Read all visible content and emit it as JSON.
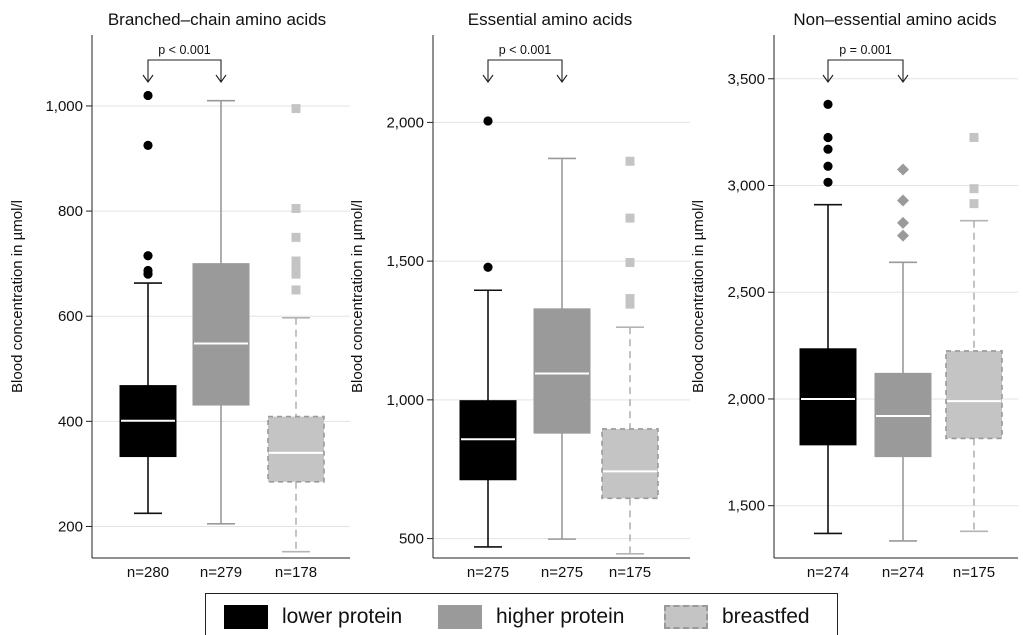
{
  "chart_data": [
    {
      "type": "box",
      "title": "Branched–chain amino acids",
      "ylabel": "Blood concentration in µmol/l",
      "ylim": [
        140,
        1135
      ],
      "yticks": [
        200,
        400,
        600,
        800,
        1000
      ],
      "ytick_labels": [
        "200",
        "400",
        "600",
        "800",
        "1,000"
      ],
      "annotation": "p < 0.001",
      "groups": [
        {
          "series": "lower protein",
          "n_label": "n=280",
          "whisker_low": 225,
          "q1": 333,
          "median": 401,
          "q3": 468,
          "whisker_high": 663,
          "outliers": [
            680,
            687,
            715,
            925,
            1020
          ]
        },
        {
          "series": "higher protein",
          "n_label": "n=279",
          "whisker_low": 205,
          "q1": 431,
          "median": 548,
          "q3": 700,
          "whisker_high": 1010,
          "outliers": []
        },
        {
          "series": "breastfed",
          "n_label": "n=178",
          "whisker_low": 152,
          "q1": 285,
          "median": 340,
          "q3": 409,
          "whisker_high": 597,
          "outliers": [
            650,
            680,
            695,
            705,
            750,
            805,
            995
          ]
        }
      ]
    },
    {
      "type": "box",
      "title": "Essential amino acids",
      "ylabel": "Blood concentration in µmol/l",
      "ylim": [
        430,
        2315
      ],
      "yticks": [
        500,
        1000,
        1500,
        2000
      ],
      "ytick_labels": [
        "500",
        "1,000",
        "1,500",
        "2,000"
      ],
      "annotation": "p < 0.001",
      "groups": [
        {
          "series": "lower protein",
          "n_label": "n=275",
          "whisker_low": 470,
          "q1": 712,
          "median": 858,
          "q3": 997,
          "whisker_high": 1395,
          "outliers": [
            1478,
            2005
          ]
        },
        {
          "series": "higher protein",
          "n_label": "n=275",
          "whisker_low": 498,
          "q1": 880,
          "median": 1095,
          "q3": 1328,
          "whisker_high": 1870,
          "outliers": []
        },
        {
          "series": "breastfed",
          "n_label": "n=175",
          "whisker_low": 445,
          "q1": 645,
          "median": 742,
          "q3": 895,
          "whisker_high": 1262,
          "outliers": [
            1345,
            1365,
            1495,
            1655,
            1860
          ]
        }
      ]
    },
    {
      "type": "box",
      "title": "Non–essential amino acids",
      "ylabel": "Blood concentration in µmol/l",
      "ylim": [
        1255,
        3705
      ],
      "yticks": [
        1500,
        2000,
        2500,
        3000,
        3500
      ],
      "ytick_labels": [
        "1,500",
        "2,000",
        "2,500",
        "3,000",
        "3,500"
      ],
      "annotation": "p = 0.001",
      "groups": [
        {
          "series": "lower protein",
          "n_label": "n=274",
          "whisker_low": 1370,
          "q1": 1785,
          "median": 2000,
          "q3": 2235,
          "whisker_high": 2910,
          "outliers": [
            3015,
            3090,
            3170,
            3225,
            3380
          ]
        },
        {
          "series": "higher protein",
          "n_label": "n=274",
          "whisker_low": 1335,
          "q1": 1730,
          "median": 1920,
          "q3": 2120,
          "whisker_high": 2640,
          "outliers": [
            2765,
            2825,
            2930,
            3075
          ]
        },
        {
          "series": "breastfed",
          "n_label": "n=175",
          "whisker_low": 1380,
          "q1": 1815,
          "median": 1990,
          "q3": 2225,
          "whisker_high": 2835,
          "outliers": [
            2915,
            2985,
            3225
          ]
        }
      ]
    }
  ],
  "legend": {
    "position": "bottom",
    "items": [
      {
        "label": "lower protein",
        "fill": "#000000",
        "whisker": "#111111",
        "median": "#ffffff",
        "marker": "circle",
        "dashed": false
      },
      {
        "label": "higher protein",
        "fill": "#9a9a9a",
        "whisker": "#9a9a9a",
        "median": "#ffffff",
        "marker": "diamond",
        "dashed": false
      },
      {
        "label": "breastfed",
        "fill": "#c4c4c4",
        "whisker": "#b3b3b3",
        "median": "#ffffff",
        "marker": "square",
        "dashed": true
      }
    ]
  }
}
